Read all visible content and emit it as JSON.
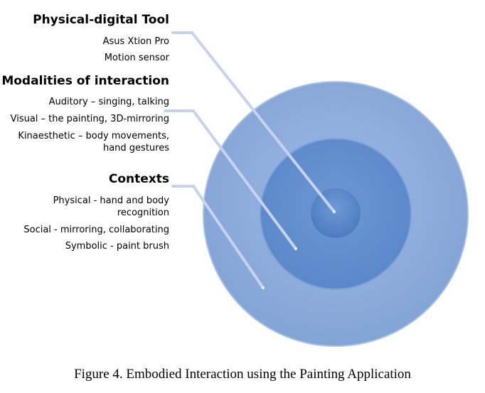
{
  "sections": [
    {
      "heading": "Physical-digital Tool",
      "items": [
        "Asus Xtion Pro",
        "Motion sensor"
      ]
    },
    {
      "heading": "Modalities of interaction",
      "items": [
        "Auditory – singing, talking",
        "Visual – the painting, 3D-mirroring",
        "Kinaesthetic – body movements,",
        "hand gestures"
      ]
    },
    {
      "heading": "Contexts",
      "items": [
        "Physical - hand and body",
        "recognition",
        "Social - mirroring, collaborating",
        "Symbolic - paint brush"
      ]
    }
  ],
  "caption": "Figure 4. Embodied Interaction using the Painting Application",
  "colors": {
    "outer_ring": "#86a8d8",
    "middle_ring": "#5f8ccc",
    "inner_core": "#4f7fc2",
    "connector": "#c7d3ec"
  }
}
